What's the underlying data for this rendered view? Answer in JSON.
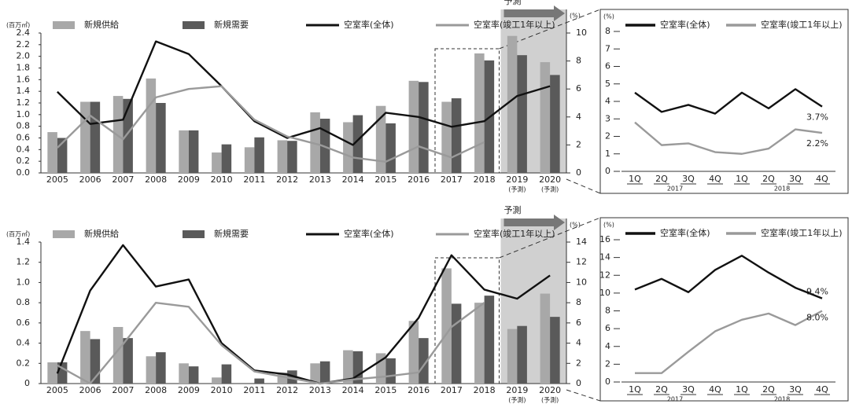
{
  "chart_data": [
    {
      "type": "bar",
      "y_unit": "(百万㎡)",
      "y2_unit": "(%)",
      "forecast_label": "予測",
      "categories": [
        "2005",
        "2006",
        "2007",
        "2008",
        "2009",
        "2010",
        "2011",
        "2012",
        "2013",
        "2014",
        "2015",
        "2016",
        "2017",
        "2018",
        "2019",
        "2020"
      ],
      "sublabels": [
        null,
        null,
        null,
        null,
        null,
        null,
        null,
        null,
        null,
        null,
        null,
        null,
        null,
        null,
        "(予測)",
        "(予測)"
      ],
      "ylim": [
        0,
        2.4
      ],
      "yticks": [
        {
          "value": 0,
          "label": "0.0"
        },
        0.2,
        0.4,
        0.6,
        0.8,
        {
          "value": 1,
          "label": "1.0"
        },
        1.2,
        1.4,
        1.6,
        1.8,
        {
          "value": 2,
          "label": "2.0"
        },
        2.2,
        2.4
      ],
      "y2lim": [
        0,
        10
      ],
      "y2ticks": [
        0,
        2,
        4,
        6,
        8,
        10
      ],
      "series": [
        {
          "name": "新規供給",
          "type": "bar",
          "color": "#a8a8a8",
          "values": [
            0.7,
            1.22,
            1.32,
            1.62,
            0.73,
            0.35,
            0.44,
            0.56,
            1.04,
            0.87,
            1.15,
            1.58,
            1.22,
            2.05,
            2.35,
            1.9
          ]
        },
        {
          "name": "新規需要",
          "type": "bar",
          "color": "#5a5a5a",
          "values": [
            0.6,
            1.22,
            1.27,
            1.2,
            0.73,
            0.49,
            0.61,
            0.55,
            0.93,
            0.99,
            0.85,
            1.56,
            1.28,
            1.93,
            2.02,
            1.68
          ]
        },
        {
          "name": "空室率(全体)",
          "type": "line",
          "axis": "y2",
          "color": "#111111",
          "values": [
            5.8,
            3.5,
            3.8,
            9.4,
            8.5,
            6.2,
            3.7,
            2.5,
            3.2,
            2.0,
            4.3,
            4.0,
            3.3,
            3.7,
            5.5,
            6.2
          ]
        },
        {
          "name": "空室率(竣工1年以上)",
          "type": "line",
          "axis": "y2",
          "color": "#9a9a9a",
          "values": [
            1.8,
            4.1,
            2.4,
            5.4,
            6.0,
            6.2,
            3.8,
            2.6,
            2.0,
            1.1,
            0.8,
            1.9,
            1.1,
            2.2,
            null,
            null
          ]
        }
      ]
    },
    {
      "type": "line",
      "y_unit": "(%)",
      "categories": [
        "1Q",
        "2Q",
        "3Q",
        "4Q",
        "1Q",
        "2Q",
        "3Q",
        "4Q"
      ],
      "year_groups": [
        "2017",
        "2018"
      ],
      "ylim": [
        0,
        8
      ],
      "yticks": [
        0,
        1,
        2,
        3,
        4,
        5,
        6,
        7,
        8
      ],
      "series": [
        {
          "name": "空室率(全体)",
          "color": "#111111",
          "values": [
            4.5,
            3.4,
            3.8,
            3.3,
            4.5,
            3.6,
            4.7,
            3.7
          ],
          "value_labels": [
            null,
            null,
            null,
            null,
            null,
            null,
            null,
            "3.7%"
          ]
        },
        {
          "name": "空室率(竣工1年以上)",
          "color": "#9a9a9a",
          "values": [
            2.8,
            1.5,
            1.6,
            1.1,
            1.0,
            1.3,
            2.4,
            2.2
          ],
          "value_labels": [
            null,
            null,
            null,
            null,
            null,
            null,
            null,
            "2.2%"
          ]
        }
      ]
    },
    {
      "type": "bar",
      "y_unit": "(百万㎡)",
      "y2_unit": "(%)",
      "forecast_label": "予測",
      "categories": [
        "2005",
        "2006",
        "2007",
        "2008",
        "2009",
        "2010",
        "2011",
        "2012",
        "2013",
        "2014",
        "2015",
        "2016",
        "2017",
        "2018",
        "2019",
        "2020"
      ],
      "sublabels": [
        null,
        null,
        null,
        null,
        null,
        null,
        null,
        null,
        null,
        null,
        null,
        null,
        null,
        null,
        "(予測)",
        "(予測)"
      ],
      "ylim": [
        0,
        1.4
      ],
      "yticks": [
        0,
        0.2,
        0.4,
        0.6,
        0.8,
        {
          "value": 1,
          "label": "1.0"
        },
        1.2,
        1.4
      ],
      "y2lim": [
        0,
        14
      ],
      "y2ticks": [
        0,
        2,
        4,
        6,
        8,
        10,
        12,
        14
      ],
      "series": [
        {
          "name": "新規供給",
          "type": "bar",
          "color": "#a8a8a8",
          "values": [
            0.21,
            0.52,
            0.56,
            0.27,
            0.2,
            0.06,
            0.0,
            0.11,
            0.2,
            0.33,
            0.3,
            0.62,
            1.14,
            0.8,
            0.54,
            0.89
          ]
        },
        {
          "name": "新規需要",
          "type": "bar",
          "color": "#5a5a5a",
          "values": [
            0.21,
            0.44,
            0.45,
            0.31,
            0.17,
            0.19,
            0.05,
            0.13,
            0.22,
            0.32,
            0.25,
            0.45,
            0.79,
            0.87,
            0.57,
            0.66
          ]
        },
        {
          "name": "空室率(全体)",
          "type": "line",
          "axis": "y2",
          "color": "#111111",
          "values": [
            1.0,
            9.2,
            13.7,
            9.6,
            10.3,
            4.0,
            1.3,
            0.9,
            0.0,
            0.5,
            2.6,
            6.5,
            12.7,
            9.3,
            8.4,
            10.7
          ]
        },
        {
          "name": "空室率(竣工1年以上)",
          "type": "line",
          "axis": "y2",
          "color": "#9a9a9a",
          "values": [
            1.8,
            0,
            3.9,
            8.0,
            7.6,
            3.8,
            1.2,
            0.6,
            0,
            0.4,
            0.7,
            1.1,
            5.6,
            8.0,
            null,
            null
          ]
        }
      ]
    },
    {
      "type": "line",
      "y_unit": "(%)",
      "categories": [
        "1Q",
        "2Q",
        "3Q",
        "4Q",
        "1Q",
        "2Q",
        "3Q",
        "4Q"
      ],
      "year_groups": [
        "2017",
        "2018"
      ],
      "ylim": [
        0,
        16
      ],
      "yticks": [
        0,
        2,
        4,
        6,
        8,
        10,
        12,
        14,
        16
      ],
      "series": [
        {
          "name": "空室率(全体)",
          "color": "#111111",
          "values": [
            10.4,
            11.6,
            10.1,
            12.6,
            14.2,
            12.3,
            10.6,
            9.4
          ],
          "value_labels": [
            null,
            null,
            null,
            null,
            null,
            null,
            null,
            "9.4%"
          ]
        },
        {
          "name": "空室率(竣工1年以上)",
          "color": "#9a9a9a",
          "values": [
            1.0,
            1.0,
            3.4,
            5.7,
            7.0,
            7.7,
            6.4,
            8.0
          ],
          "value_labels": [
            null,
            null,
            null,
            null,
            null,
            null,
            null,
            "8.0%"
          ]
        }
      ]
    }
  ]
}
